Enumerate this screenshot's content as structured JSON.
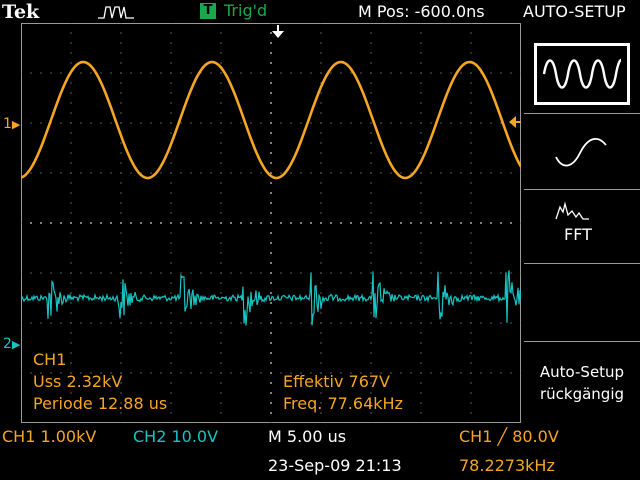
{
  "header": {
    "brand": "Tek",
    "trigger_state": "Trig'd",
    "trigger_icon_letter": "T",
    "horizontal_position": "M Pos: -600.0ns",
    "menu_title": "AUTO-SETUP"
  },
  "channels": {
    "ch1_marker": "1",
    "ch2_marker": "2"
  },
  "measurements": {
    "ch1_label": "CH1",
    "uss": "Uss 2.32kV",
    "periode": "Periode 12.88 us",
    "effektiv": "Effektiv 767V",
    "freq": "Freq. 77.64kHz"
  },
  "side_menu": {
    "fft_label": "FFT",
    "undo_line1": "Auto-Setup",
    "undo_line2": "rückgängig"
  },
  "status_bar": {
    "ch1_scale": "CH1  1.00kV",
    "ch2_scale": "CH2  10.0V",
    "timebase": "M 5.00 us",
    "trigger": "CH1  ╱  80.0V",
    "datetime": "23-Sep-09 21:13",
    "trigger_freq": "78.2273kHz"
  },
  "colors": {
    "ch1": "#f5a623",
    "ch2": "#19c3c3",
    "trigger_green": "#19a84a",
    "grid": "#9a9a9a"
  }
}
